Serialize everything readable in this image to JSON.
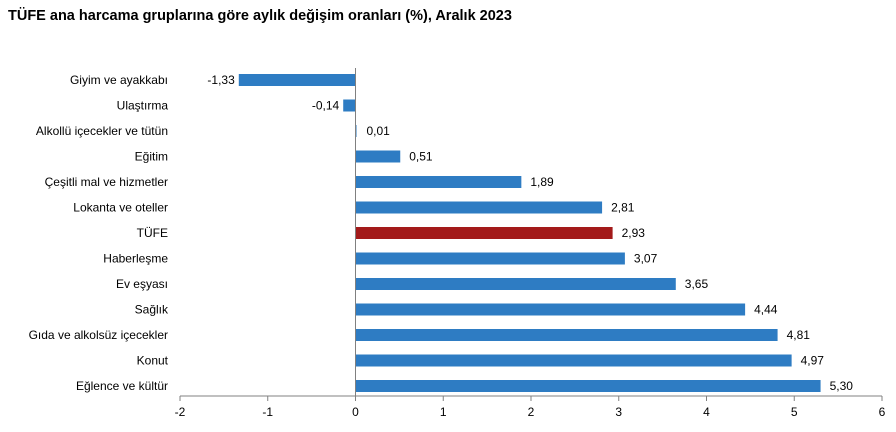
{
  "title": "TÜFE ana harcama gruplarına göre aylık değişim oranları (%), Aralık 2023",
  "colors": {
    "bar": "#2E7CC3",
    "highlight": "#A31A1A",
    "axis": "#808080"
  },
  "chart_data": {
    "type": "bar",
    "orientation": "horizontal",
    "title": "TÜFE ana harcama gruplarına göre aylık değişim oranları (%), Aralık 2023",
    "categories": [
      "Giyim ve ayakkabı",
      "Ulaştırma",
      "Alkollü içecekler ve tütün",
      "Eğitim",
      "Çeşitli mal ve hizmetler",
      "Lokanta ve oteller",
      "TÜFE",
      "Haberleşme",
      "Ev eşyası",
      "Sağlık",
      "Gıda ve alkolsüz içecekler",
      "Konut",
      "Eğlence ve kültür"
    ],
    "values": [
      -1.33,
      -0.14,
      0.01,
      0.51,
      1.89,
      2.81,
      2.93,
      3.07,
      3.65,
      4.44,
      4.81,
      4.97,
      5.3
    ],
    "value_labels": [
      "-1,33",
      "-0,14",
      "0,01",
      "0,51",
      "1,89",
      "2,81",
      "2,93",
      "3,07",
      "3,65",
      "4,44",
      "4,81",
      "4,97",
      "5,30"
    ],
    "highlight_category": "TÜFE",
    "xlim": [
      -2,
      6
    ],
    "xticks": [
      -2,
      -1,
      0,
      1,
      2,
      3,
      4,
      5,
      6
    ],
    "xtick_labels": [
      "-2",
      "-1",
      "0",
      "1",
      "2",
      "3",
      "4",
      "5",
      "6"
    ],
    "xlabel": "",
    "ylabel": "",
    "grid": false,
    "legend": "none"
  }
}
